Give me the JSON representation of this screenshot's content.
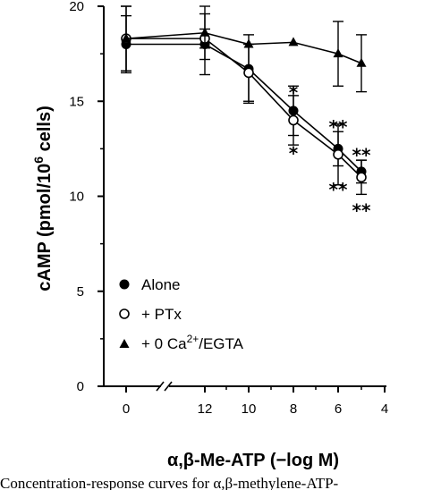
{
  "chart_data": {
    "type": "line",
    "xlabel": "α,β-Me-ATP (−log M)",
    "ylabel_main": "cAMP (pmol/10",
    "ylabel_sup": "6",
    "ylabel_tail": " cells)",
    "ylim": [
      0,
      20
    ],
    "yticks": [
      0,
      5,
      10,
      15,
      20
    ],
    "xlim": [
      13.4,
      4
    ],
    "xticks": [
      "0",
      "12",
      "10",
      "8",
      "6",
      "4"
    ],
    "x_axis_break": true,
    "x_categories_note": "0 = no agonist (left of axis break)",
    "series": [
      {
        "name": "Alone",
        "marker": "filled-circle",
        "points": [
          {
            "x": "0",
            "y": 18.0,
            "err": 1.5
          },
          {
            "x": "12",
            "y": 18.0,
            "err": 1.6
          },
          {
            "x": "10",
            "y": 16.7,
            "err": 1.8
          },
          {
            "x": "8",
            "y": 14.5,
            "err": 1.3
          },
          {
            "x": "6",
            "y": 12.5,
            "err": 0.9
          },
          {
            "x": "5",
            "y": 11.3,
            "err": 0.6
          }
        ]
      },
      {
        "name": "+ PTx",
        "marker": "open-circle",
        "points": [
          {
            "x": "0",
            "y": 18.3,
            "err": 1.7
          },
          {
            "x": "12",
            "y": 18.3,
            "err": 0.5
          },
          {
            "x": "10",
            "y": 16.5,
            "err": 1.5
          },
          {
            "x": "8",
            "y": 14.0,
            "err": 1.3
          },
          {
            "x": "6",
            "y": 12.2,
            "err": 1.6
          },
          {
            "x": "5",
            "y": 11.0,
            "err": 0.9
          }
        ]
      },
      {
        "name": "+ 0 Ca²⁺/EGTA",
        "marker": "filled-triangle",
        "points": [
          {
            "x": "0",
            "y": 18.3,
            "err": 1.7
          },
          {
            "x": "12",
            "y": 18.6,
            "err": 1.4
          },
          {
            "x": "10",
            "y": 18.0,
            "err": 0.0
          },
          {
            "x": "8",
            "y": 18.1,
            "err": 0.0
          },
          {
            "x": "6",
            "y": 17.5,
            "err": 1.7
          },
          {
            "x": "5",
            "y": 17.0,
            "err": 1.5
          }
        ]
      }
    ],
    "annotations": [
      {
        "x": "8",
        "y": 15.6,
        "text": "*"
      },
      {
        "x": "8",
        "y": 12.4,
        "text": "*"
      },
      {
        "x": "6",
        "y": 13.8,
        "text": "**"
      },
      {
        "x": "6",
        "y": 10.5,
        "text": "**"
      },
      {
        "x": "5",
        "y": 12.3,
        "text": "**"
      },
      {
        "x": "5",
        "y": 9.4,
        "text": "**"
      }
    ],
    "legend": {
      "placement": "bottom-left",
      "entries": [
        {
          "marker": "filled-circle",
          "text": "Alone"
        },
        {
          "marker": "open-circle",
          "text": "+ PTx"
        },
        {
          "marker": "filled-triangle",
          "text_pre": "+ 0 Ca",
          "text_sup": "2+",
          "text_post": "/EGTA"
        }
      ]
    }
  },
  "caption": "Concentration-response curves for α,β-methylene-ATP-"
}
